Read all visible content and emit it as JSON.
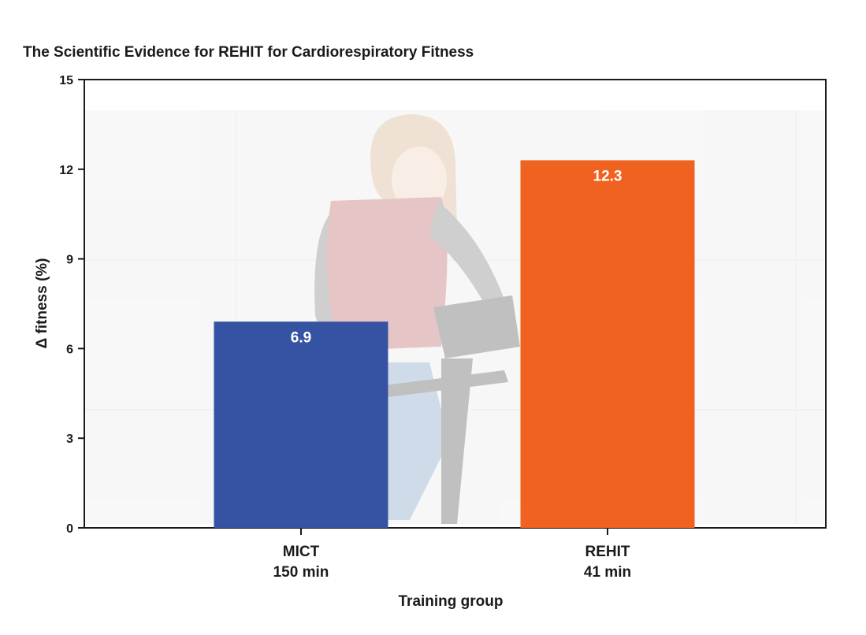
{
  "chart_data": {
    "type": "bar",
    "title": "The Scientific Evidence for REHIT for Cardiorespiratory Fitness",
    "xlabel": "Training group",
    "ylabel": "Δ fitness (%)",
    "ylim": [
      0,
      15
    ],
    "yticks": [
      "0",
      "3",
      "6",
      "9",
      "12",
      "15"
    ],
    "grid": false,
    "categories": [
      {
        "line1": "MICT",
        "line2": "150 min"
      },
      {
        "line1": "REHIT",
        "line2": "41 min"
      }
    ],
    "values": [
      6.9,
      12.3
    ],
    "value_labels": [
      "6.9",
      "12.3"
    ],
    "colors": [
      "#3652a2",
      "#f0621f"
    ],
    "background_image": "faded-photo-woman-on-exercise-bike"
  }
}
